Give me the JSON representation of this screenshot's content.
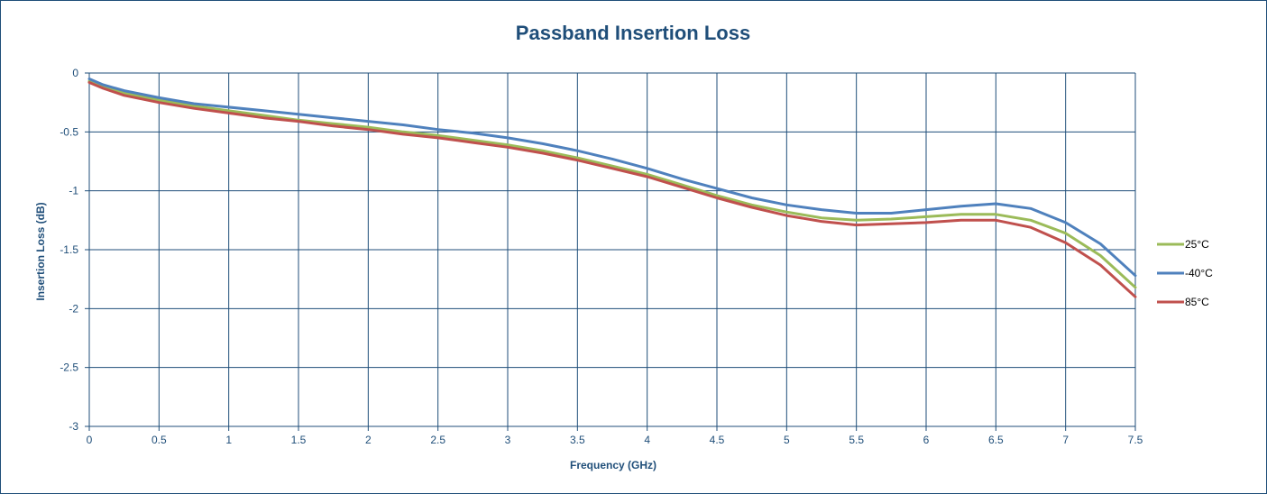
{
  "chart_data": {
    "type": "line",
    "title": "Passband Insertion Loss",
    "xlabel": "Frequency (GHz)",
    "ylabel": "Insertion Loss (dB)",
    "xlim": [
      0,
      7.5
    ],
    "ylim": [
      -3,
      0
    ],
    "xticks": [
      "0",
      "0.5",
      "1",
      "1.5",
      "2",
      "2.5",
      "3",
      "3.5",
      "4",
      "4.5",
      "5",
      "5.5",
      "6",
      "6.5",
      "7",
      "7.5"
    ],
    "yticks": [
      "0",
      "-0.5",
      "-1",
      "-1.5",
      "-2",
      "-2.5",
      "-3"
    ],
    "grid": true,
    "legend_position": "right",
    "series": [
      {
        "name": "25°C",
        "color": "#9bbb59",
        "x": [
          0,
          0.1,
          0.25,
          0.5,
          0.75,
          1,
          1.25,
          1.5,
          1.75,
          2,
          2.25,
          2.5,
          2.75,
          3,
          3.25,
          3.5,
          3.75,
          4,
          4.25,
          4.5,
          4.75,
          5,
          5.25,
          5.5,
          5.75,
          6,
          6.25,
          6.5,
          6.75,
          7,
          7.25,
          7.5
        ],
        "values": [
          -0.07,
          -0.12,
          -0.17,
          -0.23,
          -0.28,
          -0.32,
          -0.36,
          -0.4,
          -0.43,
          -0.46,
          -0.5,
          -0.53,
          -0.57,
          -0.61,
          -0.66,
          -0.72,
          -0.79,
          -0.86,
          -0.95,
          -1.04,
          -1.12,
          -1.18,
          -1.23,
          -1.25,
          -1.24,
          -1.22,
          -1.2,
          -1.2,
          -1.25,
          -1.36,
          -1.55,
          -1.82
        ]
      },
      {
        "name": "-40°C",
        "color": "#4f81bd",
        "x": [
          0,
          0.1,
          0.25,
          0.5,
          0.75,
          1,
          1.25,
          1.5,
          1.75,
          2,
          2.25,
          2.5,
          2.75,
          3,
          3.25,
          3.5,
          3.75,
          4,
          4.25,
          4.5,
          4.75,
          5,
          5.25,
          5.5,
          5.75,
          6,
          6.25,
          6.5,
          6.75,
          7,
          7.25,
          7.5
        ],
        "values": [
          -0.05,
          -0.1,
          -0.15,
          -0.21,
          -0.26,
          -0.29,
          -0.32,
          -0.35,
          -0.38,
          -0.41,
          -0.44,
          -0.48,
          -0.51,
          -0.55,
          -0.6,
          -0.66,
          -0.73,
          -0.81,
          -0.9,
          -0.98,
          -1.06,
          -1.12,
          -1.16,
          -1.19,
          -1.19,
          -1.16,
          -1.13,
          -1.11,
          -1.15,
          -1.27,
          -1.45,
          -1.72
        ]
      },
      {
        "name": "85°C",
        "color": "#c0504d",
        "x": [
          0,
          0.1,
          0.25,
          0.5,
          0.75,
          1,
          1.25,
          1.5,
          1.75,
          2,
          2.25,
          2.5,
          2.75,
          3,
          3.25,
          3.5,
          3.75,
          4,
          4.25,
          4.5,
          4.75,
          5,
          5.25,
          5.5,
          5.75,
          6,
          6.25,
          6.5,
          6.75,
          7,
          7.25,
          7.5
        ],
        "values": [
          -0.08,
          -0.13,
          -0.19,
          -0.25,
          -0.3,
          -0.34,
          -0.38,
          -0.41,
          -0.45,
          -0.48,
          -0.52,
          -0.55,
          -0.59,
          -0.63,
          -0.68,
          -0.74,
          -0.81,
          -0.88,
          -0.97,
          -1.06,
          -1.14,
          -1.21,
          -1.26,
          -1.29,
          -1.28,
          -1.27,
          -1.25,
          -1.25,
          -1.31,
          -1.44,
          -1.63,
          -1.9
        ]
      }
    ]
  }
}
